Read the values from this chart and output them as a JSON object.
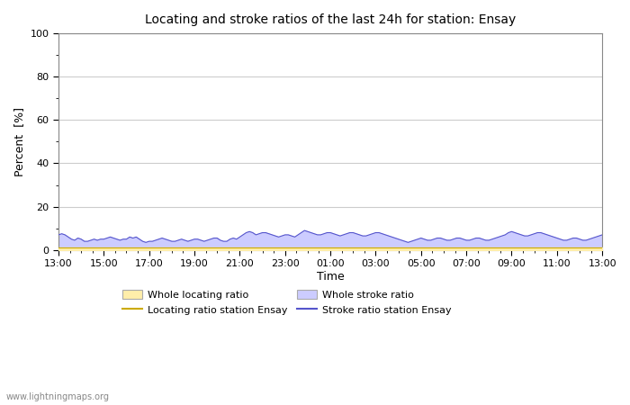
{
  "title": "Locating and stroke ratios of the last 24h for station: Ensay",
  "xlabel": "Time",
  "ylabel": "Percent  [%]",
  "xlim_labels": [
    "13:00",
    "15:00",
    "17:00",
    "19:00",
    "21:00",
    "23:00",
    "01:00",
    "03:00",
    "05:00",
    "07:00",
    "09:00",
    "11:00",
    "13:00"
  ],
  "ylim": [
    0,
    100
  ],
  "yticks": [
    0,
    20,
    40,
    60,
    80,
    100
  ],
  "ytick_minor": [
    10,
    30,
    50,
    70,
    90
  ],
  "background_color": "#ffffff",
  "plot_bg_color": "#ffffff",
  "grid_color": "#cccccc",
  "watermark": "www.lightningmaps.org",
  "stroke_fill_color": "#ccccff",
  "stroke_line_color": "#5555cc",
  "locating_fill_color": "#ffeeaa",
  "locating_line_color": "#ccaa00",
  "stroke_ratio_values": [
    7,
    7.5,
    7,
    6,
    5,
    4.5,
    5.5,
    5,
    4,
    4,
    4.5,
    5,
    4.5,
    5,
    5,
    5.5,
    6,
    5.5,
    5,
    4.5,
    5,
    5,
    6,
    5.5,
    6,
    5,
    4,
    3.5,
    4,
    4,
    4.5,
    5,
    5.5,
    5,
    4.5,
    4,
    4,
    4.5,
    5,
    4.5,
    4,
    4.5,
    5,
    5,
    4.5,
    4,
    4.5,
    5,
    5.5,
    5.5,
    4.5,
    4,
    4,
    5,
    5.5,
    5,
    6,
    7,
    8,
    8.5,
    8,
    7,
    7.5,
    8,
    8,
    7.5,
    7,
    6.5,
    6,
    6.5,
    7,
    7,
    6.5,
    6,
    7,
    8,
    9,
    8.5,
    8,
    7.5,
    7,
    7,
    7.5,
    8,
    8,
    7.5,
    7,
    6.5,
    7,
    7.5,
    8,
    8,
    7.5,
    7,
    6.5,
    6.5,
    7,
    7.5,
    8,
    8,
    7.5,
    7,
    6.5,
    6,
    5.5,
    5,
    4.5,
    4,
    3.5,
    4,
    4.5,
    5,
    5.5,
    5,
    4.5,
    4.5,
    5,
    5.5,
    5.5,
    5,
    4.5,
    4.5,
    5,
    5.5,
    5.5,
    5,
    4.5,
    4.5,
    5,
    5.5,
    5.5,
    5,
    4.5,
    4.5,
    5,
    5.5,
    6,
    6.5,
    7,
    8,
    8.5,
    8,
    7.5,
    7,
    6.5,
    6.5,
    7,
    7.5,
    8,
    8,
    7.5,
    7,
    6.5,
    6,
    5.5,
    5,
    4.5,
    4.5,
    5,
    5.5,
    5.5,
    5,
    4.5,
    4.5,
    5,
    5.5,
    6,
    6.5,
    7
  ],
  "locating_ratio_values": [
    1,
    1,
    1,
    1,
    1,
    1,
    1,
    1,
    1,
    1,
    1,
    1,
    1,
    1,
    1,
    1,
    1,
    1,
    1,
    1,
    1,
    1,
    1,
    1,
    1,
    1,
    1,
    1,
    1,
    1,
    1,
    1,
    1,
    1,
    1,
    1,
    1,
    1,
    1,
    1,
    1,
    1,
    1,
    1,
    1,
    1,
    1,
    1,
    1,
    1,
    1,
    1,
    1,
    1,
    1,
    1,
    1,
    1,
    1,
    1,
    1,
    1,
    1,
    1,
    1,
    1,
    1,
    1,
    1,
    1,
    1,
    1,
    1,
    1,
    1,
    1,
    1,
    1,
    1,
    1,
    1,
    1,
    1,
    1,
    1,
    1,
    1,
    1,
    1,
    1,
    1,
    1,
    1,
    1,
    1,
    1,
    1,
    1,
    1,
    1,
    1,
    1,
    1,
    1,
    1,
    1,
    1,
    1,
    1,
    1,
    1,
    1,
    1,
    1,
    1,
    1,
    1,
    1,
    1,
    1,
    1,
    1,
    1,
    1,
    1,
    1,
    1,
    1,
    1,
    1,
    1,
    1,
    1,
    1,
    1,
    1,
    1,
    1,
    1,
    1,
    1,
    1,
    1,
    1,
    1,
    1,
    1,
    1,
    1,
    1,
    1,
    1,
    1,
    1,
    1,
    1,
    1,
    1,
    1,
    1,
    1,
    1,
    1,
    1,
    1,
    1,
    1,
    1
  ]
}
